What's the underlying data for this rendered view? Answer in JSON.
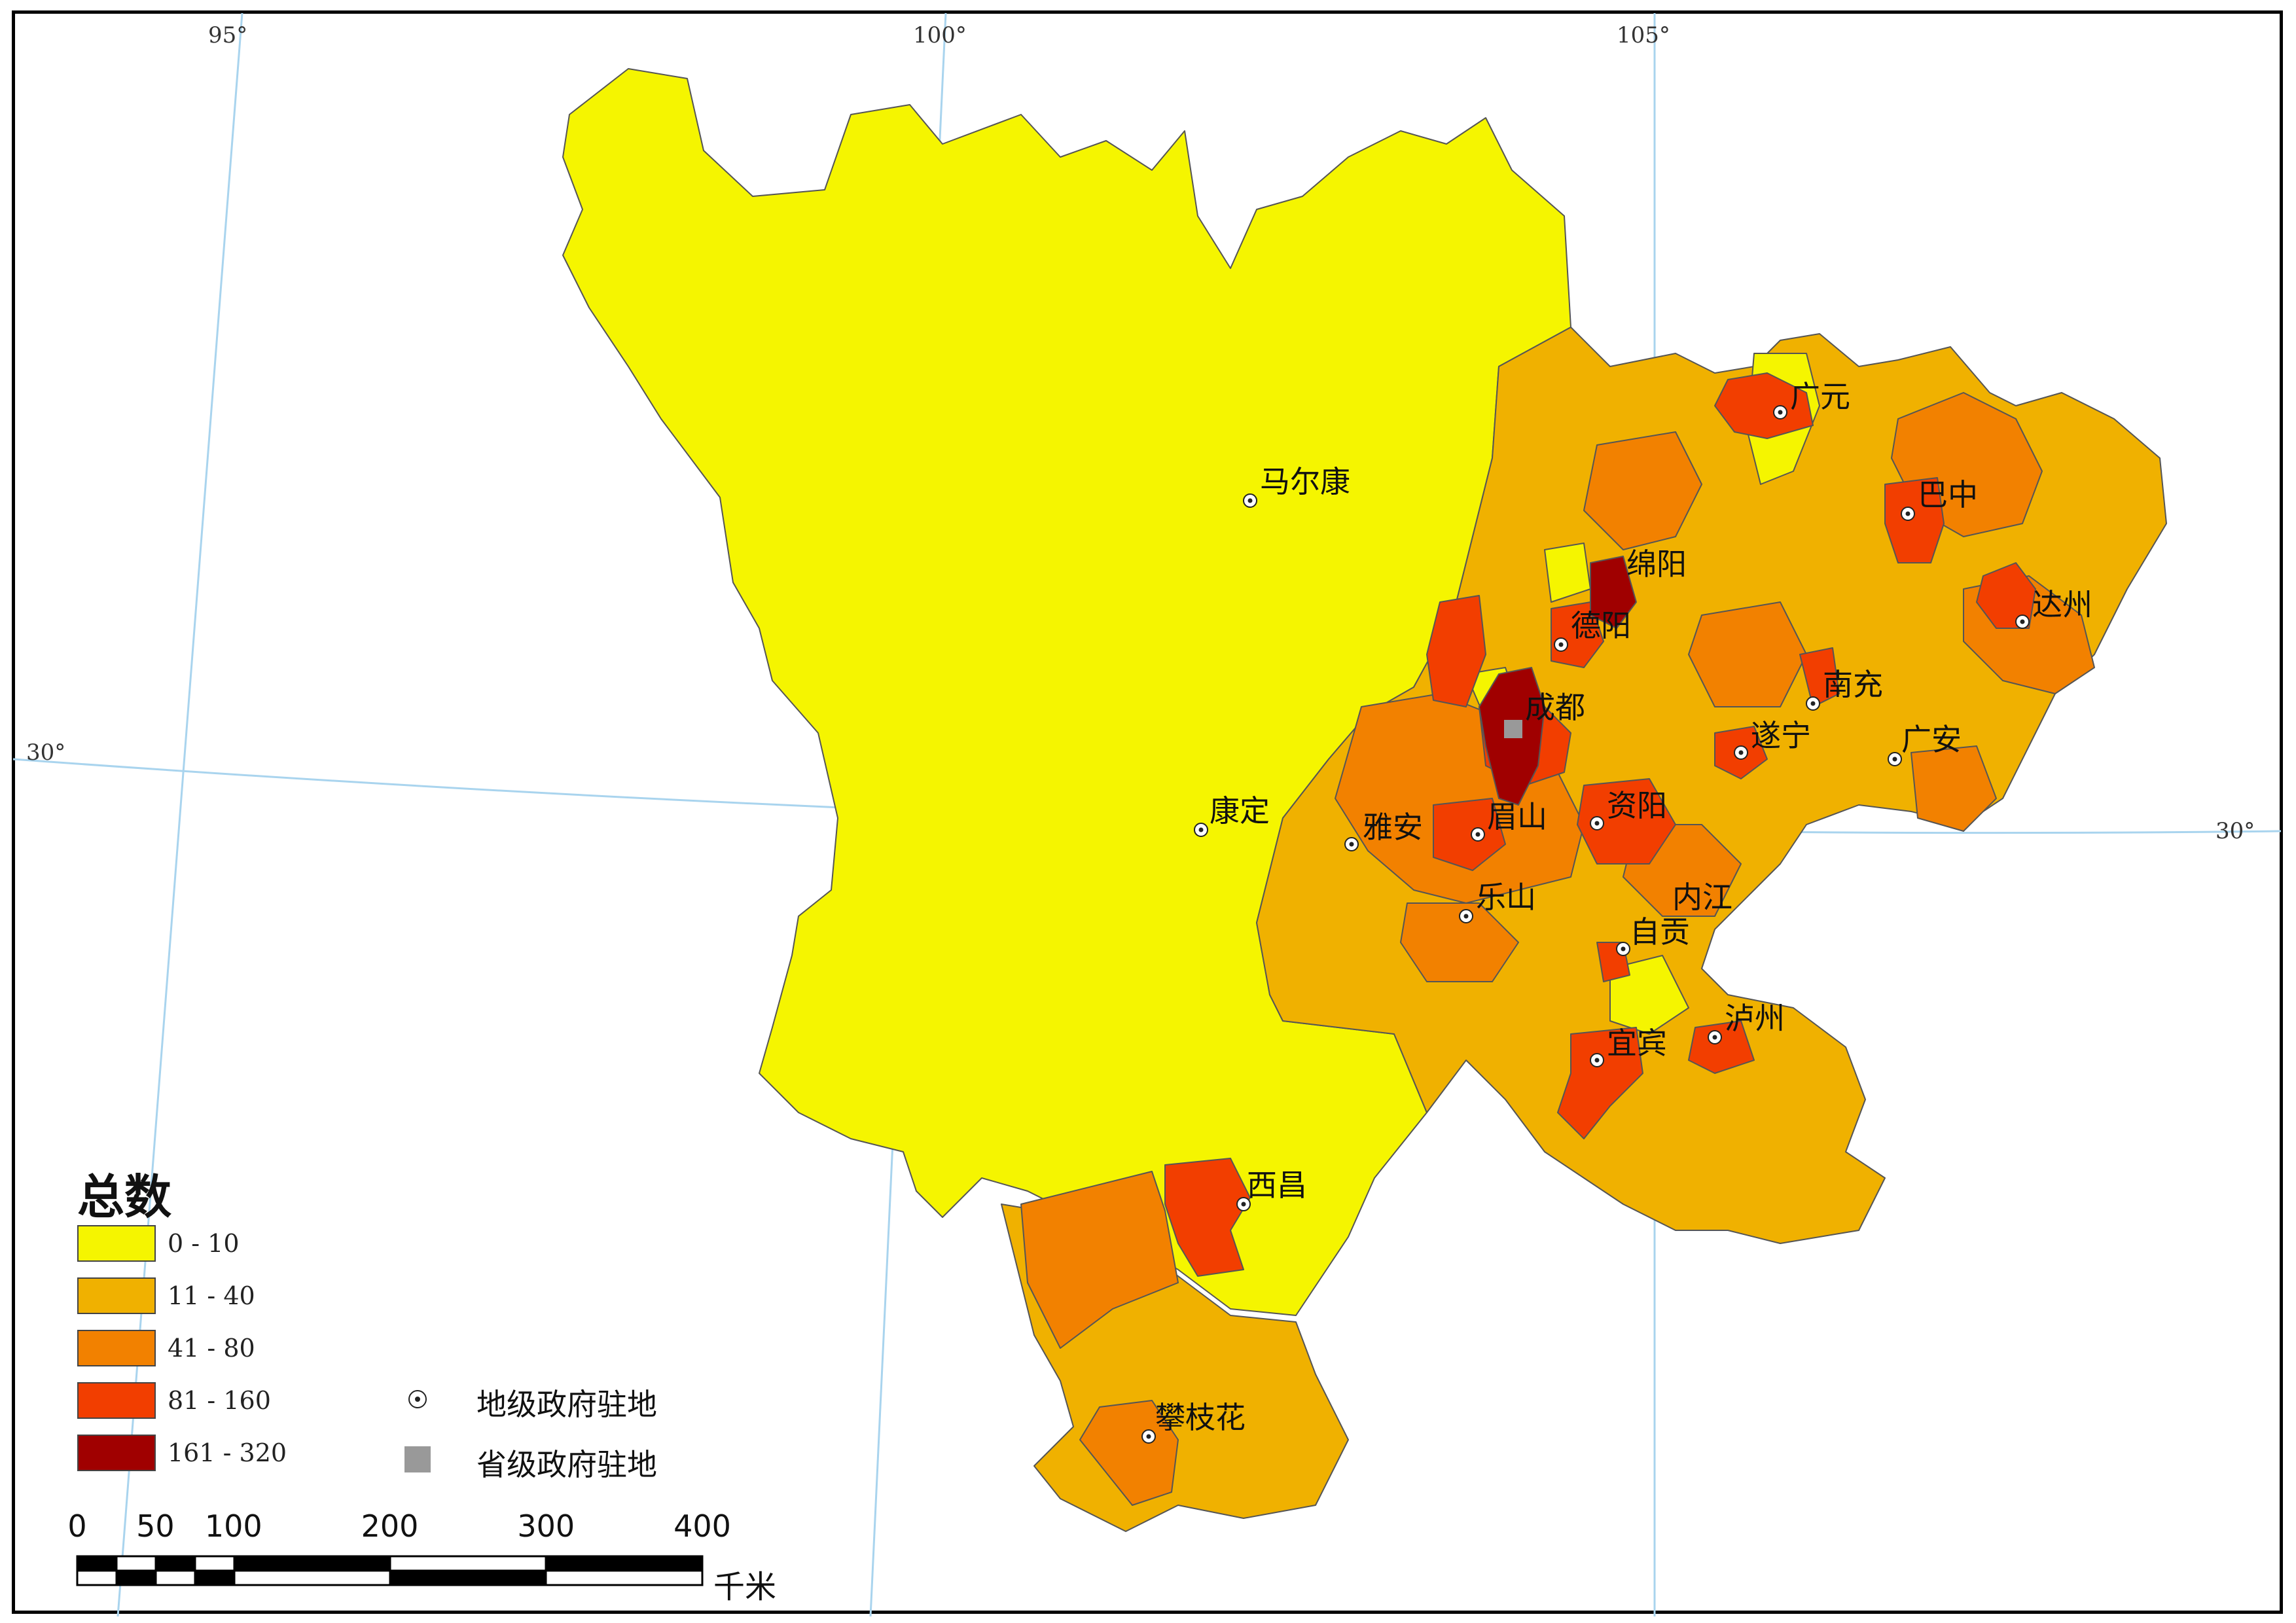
{
  "graticule_labels": {
    "lon_95": "95°",
    "lon_100": "100°",
    "lon_105": "105°",
    "lat_30_left": "30°",
    "lat_30_right": "30°"
  },
  "legend": {
    "title": "总数",
    "classes": [
      {
        "label": "0 - 10",
        "color": "#f5f500"
      },
      {
        "label": "11 - 40",
        "color": "#f0b100"
      },
      {
        "label": "41 - 80",
        "color": "#f28100"
      },
      {
        "label": "81 - 160",
        "color": "#f23e00"
      },
      {
        "label": "161 - 320",
        "color": "#a00000"
      }
    ],
    "symbols": {
      "prefecture_seat": {
        "label": "地级政府驻地",
        "icon": "dot-circle-icon"
      },
      "provincial_seat": {
        "label": "省级政府驻地",
        "icon": "gray-square-icon",
        "color": "#999999"
      }
    }
  },
  "cities": {
    "maerkang": "马尔康",
    "guangyuan": "广元",
    "bazhong": "巴中",
    "mianyang": "绵阳",
    "dazhou": "达州",
    "deyang": "德阳",
    "nanchong": "南充",
    "chengdu": "成都",
    "suining": "遂宁",
    "guangan": "广安",
    "kangding": "康定",
    "yaan": "雅安",
    "meishan": "眉山",
    "ziyang": "资阳",
    "neijiang": "内江",
    "leshan": "乐山",
    "zigong": "自贡",
    "luzhou": "泸州",
    "yibin": "宜宾",
    "xichang": "西昌",
    "panzhihua": "攀枝花"
  },
  "scale_bar": {
    "ticks": [
      "0",
      "50",
      "100",
      "200",
      "300",
      "400"
    ],
    "unit": "千米"
  }
}
